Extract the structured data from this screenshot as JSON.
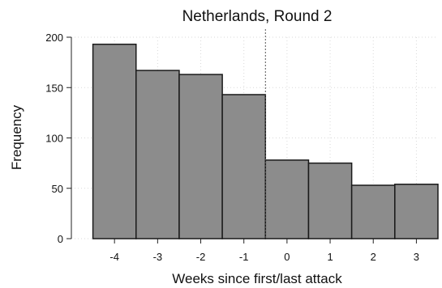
{
  "chart_data": {
    "type": "bar",
    "title": "Netherlands, Round 2",
    "xlabel": "Weeks since first/last attack",
    "ylabel": "Frequency",
    "categories": [
      "-4",
      "-3",
      "-2",
      "-1",
      "0",
      "1",
      "2",
      "3"
    ],
    "x": [
      -4,
      -3,
      -2,
      -1,
      0,
      1,
      2,
      3
    ],
    "values": [
      193,
      167,
      163,
      143,
      78,
      75,
      53,
      54
    ],
    "xlim": [
      -5,
      3.5
    ],
    "ylim": [
      0,
      200
    ],
    "yticks": [
      0,
      50,
      100,
      150,
      200
    ],
    "reference_line_x": -0.5,
    "grid": true,
    "bar_color": "#8c8c8c",
    "bar_edge_color": "#1a1a1a"
  }
}
